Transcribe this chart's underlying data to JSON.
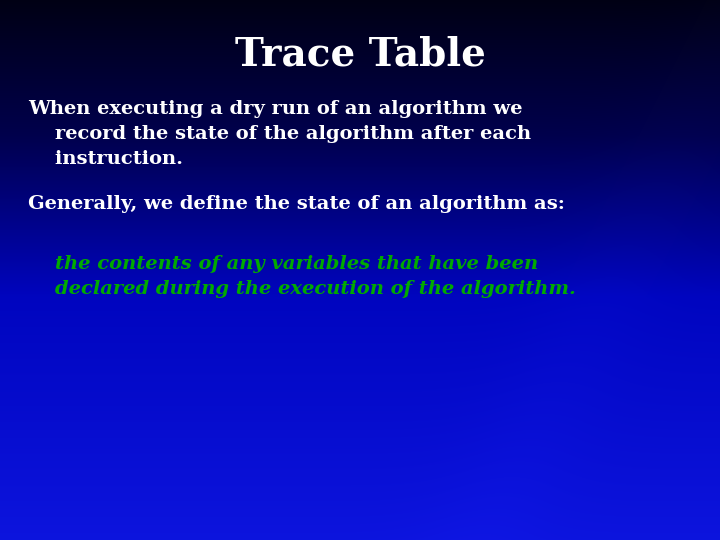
{
  "title": "Trace Table",
  "title_color": "#ffffff",
  "title_fontsize": 28,
  "title_fontfamily": "serif",
  "title_fontweight": "bold",
  "line1": "When executing a dry run of an algorithm we",
  "line2": "    record the state of the algorithm after each",
  "line3": "    instruction.",
  "line4": "Generally, we define the state of an algorithm as:",
  "line5": "    the contents of any variables that have been",
  "line6": "    declared during the execution of the algorithm.",
  "text_color_white": "#ffffff",
  "text_color_green": "#00aa00",
  "text_fontsize": 14,
  "italic_fontsize": 14
}
